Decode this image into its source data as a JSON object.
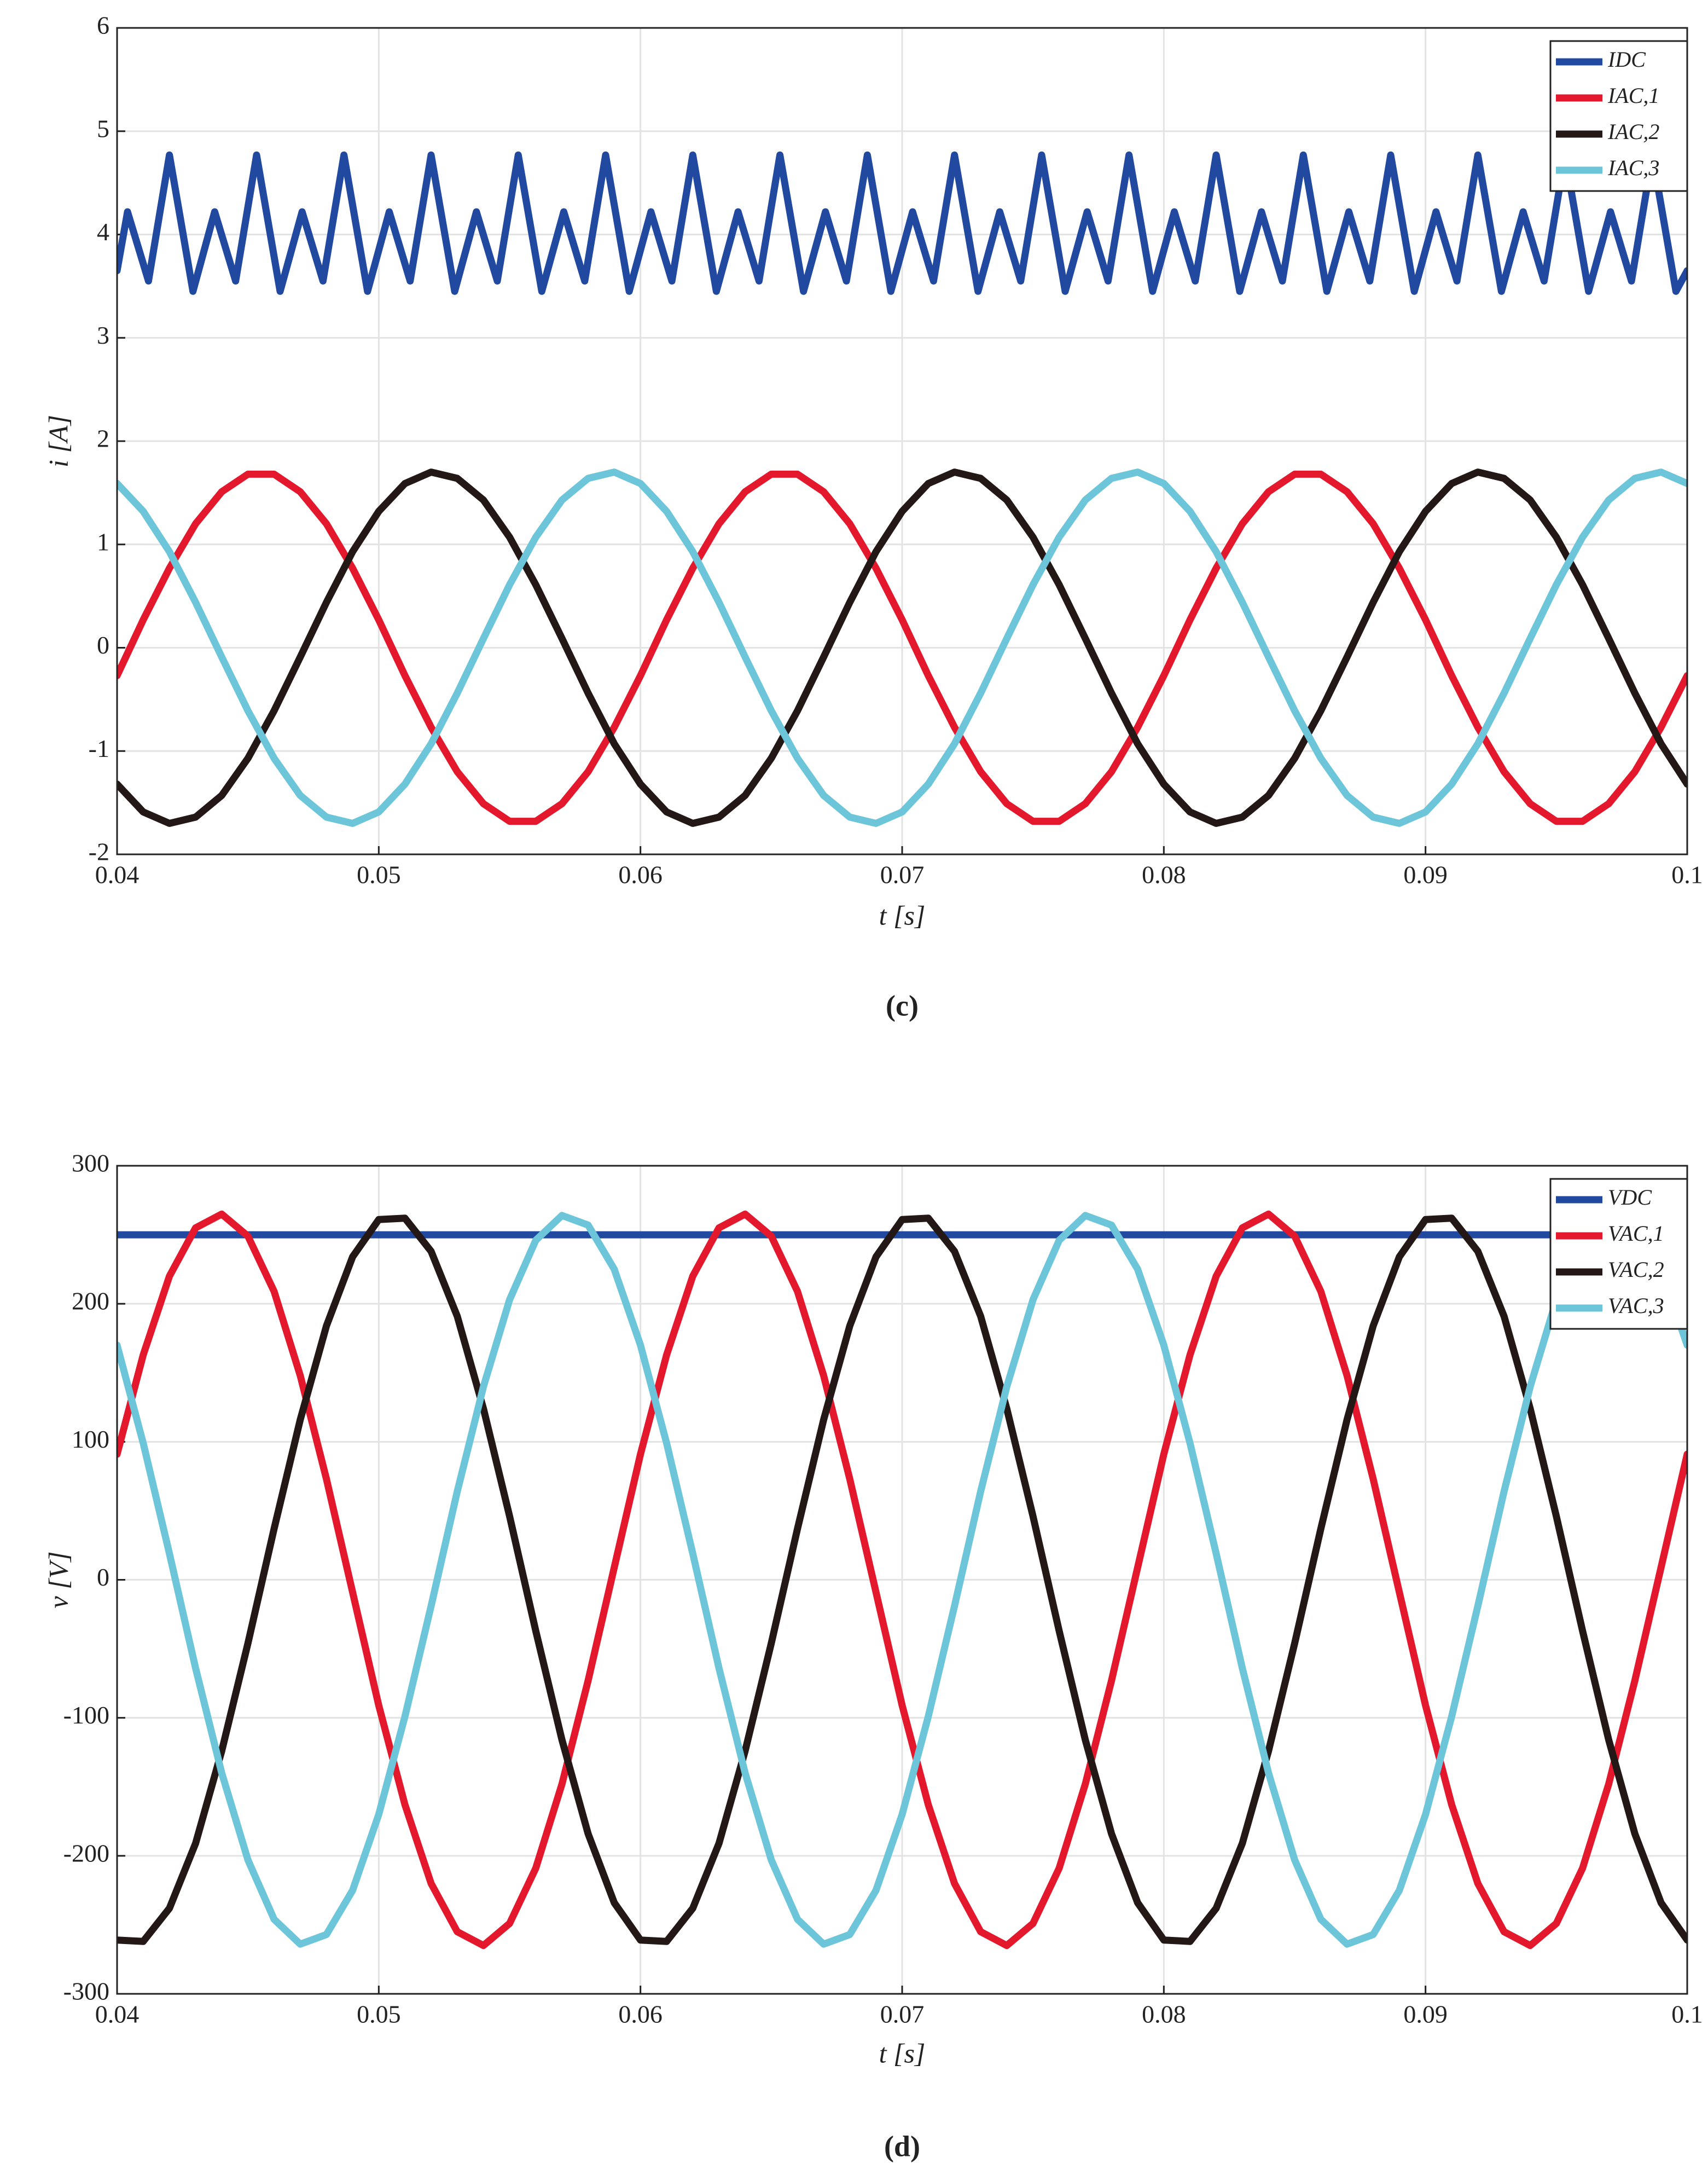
{
  "chart_data": [
    {
      "type": "line",
      "caption": "(c)",
      "x_label": "t  [s]",
      "y_label": "i  [A]",
      "xlim": [
        0.04,
        0.1
      ],
      "ylim": [
        -2,
        6
      ],
      "xticks": [
        0.04,
        0.05,
        0.06,
        0.07,
        0.08,
        0.09,
        0.1
      ],
      "yticks": [
        -2,
        -1,
        0,
        1,
        2,
        3,
        4,
        5,
        6
      ],
      "grid": true,
      "legend": "upper right",
      "x": [
        0.04,
        0.041,
        0.042,
        0.043,
        0.044,
        0.045,
        0.046,
        0.047,
        0.048,
        0.049,
        0.05,
        0.051,
        0.052,
        0.053,
        0.054,
        0.055,
        0.056,
        0.057,
        0.058,
        0.059,
        0.06,
        0.061,
        0.062,
        0.063,
        0.064,
        0.065,
        0.066,
        0.067,
        0.068,
        0.069,
        0.07,
        0.071,
        0.072,
        0.073,
        0.074,
        0.075,
        0.076,
        0.077,
        0.078,
        0.079,
        0.08,
        0.081,
        0.082,
        0.083,
        0.084,
        0.085,
        0.086,
        0.087,
        0.088,
        0.089,
        0.09,
        0.091,
        0.092,
        0.093,
        0.094,
        0.095,
        0.096,
        0.097,
        0.098,
        0.099,
        0.1
      ],
      "series": [
        {
          "name": "IDC",
          "color": "#2149a0",
          "x": [
            0.04,
            0.0404,
            0.0412,
            0.042,
            0.0429,
            0.04373,
            0.04453,
            0.04533,
            0.04623,
            0.04707,
            0.04787,
            0.04867,
            0.04957,
            0.0504,
            0.0512,
            0.052,
            0.0529,
            0.05373,
            0.05453,
            0.05533,
            0.05623,
            0.05707,
            0.05787,
            0.05867,
            0.05957,
            0.0604,
            0.0612,
            0.062,
            0.0629,
            0.06373,
            0.06453,
            0.06533,
            0.06623,
            0.06707,
            0.06787,
            0.06867,
            0.06957,
            0.0704,
            0.0712,
            0.072,
            0.0729,
            0.07373,
            0.07453,
            0.07533,
            0.07623,
            0.07707,
            0.07787,
            0.07867,
            0.07957,
            0.0804,
            0.0812,
            0.082,
            0.0829,
            0.08373,
            0.08453,
            0.08533,
            0.08623,
            0.08707,
            0.08787,
            0.08867,
            0.08957,
            0.0904,
            0.0912,
            0.092,
            0.0929,
            0.09373,
            0.09453,
            0.09533,
            0.09623,
            0.09707,
            0.09787,
            0.09867,
            0.09957,
            0.1
          ],
          "values": [
            3.65,
            4.22,
            3.55,
            4.77,
            3.45,
            4.22,
            3.55,
            4.77,
            3.45,
            4.22,
            3.55,
            4.77,
            3.45,
            4.22,
            3.55,
            4.77,
            3.45,
            4.22,
            3.55,
            4.77,
            3.45,
            4.22,
            3.55,
            4.77,
            3.45,
            4.22,
            3.55,
            4.77,
            3.45,
            4.22,
            3.55,
            4.77,
            3.45,
            4.22,
            3.55,
            4.77,
            3.45,
            4.22,
            3.55,
            4.77,
            3.45,
            4.22,
            3.55,
            4.77,
            3.45,
            4.22,
            3.55,
            4.77,
            3.45,
            4.22,
            3.55,
            4.77,
            3.45,
            4.22,
            3.55,
            4.77,
            3.45,
            4.22,
            3.55,
            4.77,
            3.45,
            4.22,
            3.55,
            4.77,
            3.45,
            4.22,
            3.55,
            4.77,
            3.45,
            4.22,
            3.55,
            4.77,
            3.45,
            3.65
          ]
        },
        {
          "name": "IAC,1",
          "color": "#e3182c",
          "values": [
            -0.27,
            0.27,
            0.77,
            1.2,
            1.51,
            1.68,
            1.68,
            1.51,
            1.2,
            0.77,
            0.27,
            -0.27,
            -0.77,
            -1.2,
            -1.51,
            -1.68,
            -1.68,
            -1.51,
            -1.2,
            -0.77,
            -0.27,
            0.27,
            0.77,
            1.2,
            1.51,
            1.68,
            1.68,
            1.51,
            1.2,
            0.77,
            0.27,
            -0.27,
            -0.77,
            -1.2,
            -1.51,
            -1.68,
            -1.68,
            -1.51,
            -1.2,
            -0.77,
            -0.27,
            0.27,
            0.77,
            1.2,
            1.51,
            1.68,
            1.68,
            1.51,
            1.2,
            0.77,
            0.27,
            -0.27,
            -0.77,
            -1.2,
            -1.51,
            -1.68,
            -1.68,
            -1.51,
            -1.2,
            -0.77,
            -0.27
          ]
        },
        {
          "name": "IAC,2",
          "color": "#231815",
          "values": [
            -1.32,
            -1.59,
            -1.7,
            -1.64,
            -1.43,
            -1.07,
            -0.61,
            -0.09,
            0.44,
            0.93,
            1.32,
            1.59,
            1.7,
            1.64,
            1.43,
            1.07,
            0.61,
            0.09,
            -0.44,
            -0.93,
            -1.32,
            -1.59,
            -1.7,
            -1.64,
            -1.43,
            -1.07,
            -0.61,
            -0.09,
            0.44,
            0.93,
            1.32,
            1.59,
            1.7,
            1.64,
            1.43,
            1.07,
            0.61,
            0.09,
            -0.44,
            -0.93,
            -1.32,
            -1.59,
            -1.7,
            -1.64,
            -1.43,
            -1.07,
            -0.61,
            -0.09,
            0.44,
            0.93,
            1.32,
            1.59,
            1.7,
            1.64,
            1.43,
            1.07,
            0.61,
            0.09,
            -0.44,
            -0.93,
            -1.32
          ]
        },
        {
          "name": "IAC,3",
          "color": "#6cc5d9",
          "values": [
            1.59,
            1.32,
            0.93,
            0.44,
            -0.09,
            -0.61,
            -1.07,
            -1.43,
            -1.64,
            -1.7,
            -1.59,
            -1.32,
            -0.93,
            -0.44,
            0.09,
            0.61,
            1.07,
            1.43,
            1.64,
            1.7,
            1.59,
            1.32,
            0.93,
            0.44,
            -0.09,
            -0.61,
            -1.07,
            -1.43,
            -1.64,
            -1.7,
            -1.59,
            -1.32,
            -0.93,
            -0.44,
            0.09,
            0.61,
            1.07,
            1.43,
            1.64,
            1.7,
            1.59,
            1.32,
            0.93,
            0.44,
            -0.09,
            -0.61,
            -1.07,
            -1.43,
            -1.64,
            -1.7,
            -1.59,
            -1.32,
            -0.93,
            -0.44,
            0.09,
            0.61,
            1.07,
            1.43,
            1.64,
            1.7,
            1.59
          ]
        }
      ]
    },
    {
      "type": "line",
      "caption": "(d)",
      "x_label": "t  [s]",
      "y_label": "v  [V]",
      "xlim": [
        0.04,
        0.1
      ],
      "ylim": [
        -300,
        300
      ],
      "xticks": [
        0.04,
        0.05,
        0.06,
        0.07,
        0.08,
        0.09,
        0.1
      ],
      "yticks": [
        -300,
        -200,
        -100,
        0,
        100,
        200,
        300
      ],
      "grid": true,
      "legend": "upper right",
      "x": [
        0.04,
        0.041,
        0.042,
        0.043,
        0.044,
        0.045,
        0.046,
        0.047,
        0.048,
        0.049,
        0.05,
        0.051,
        0.052,
        0.053,
        0.054,
        0.055,
        0.056,
        0.057,
        0.058,
        0.059,
        0.06,
        0.061,
        0.062,
        0.063,
        0.064,
        0.065,
        0.066,
        0.067,
        0.068,
        0.069,
        0.07,
        0.071,
        0.072,
        0.073,
        0.074,
        0.075,
        0.076,
        0.077,
        0.078,
        0.079,
        0.08,
        0.081,
        0.082,
        0.083,
        0.084,
        0.085,
        0.086,
        0.087,
        0.088,
        0.089,
        0.09,
        0.091,
        0.092,
        0.093,
        0.094,
        0.095,
        0.096,
        0.097,
        0.098,
        0.099,
        0.1
      ],
      "series": [
        {
          "name": "VDC",
          "color": "#2149a0",
          "x": [
            0.04,
            0.1
          ],
          "values": [
            250,
            250
          ]
        },
        {
          "name": "VAC,1",
          "color": "#e3182c",
          "values": [
            91,
            163,
            220,
            255,
            265,
            249,
            209,
            148,
            73,
            -9,
            -91,
            -163,
            -220,
            -255,
            -265,
            -249,
            -209,
            -148,
            -73,
            9,
            91,
            163,
            220,
            255,
            265,
            249,
            209,
            148,
            73,
            -9,
            -91,
            -163,
            -220,
            -255,
            -265,
            -249,
            -209,
            -148,
            -73,
            9,
            91,
            163,
            220,
            255,
            265,
            249,
            209,
            148,
            73,
            -9,
            -91,
            -163,
            -220,
            -255,
            -265,
            -249,
            -209,
            -148,
            -73,
            9,
            91
          ]
        },
        {
          "name": "VAC,2",
          "color": "#231815",
          "values": [
            -261,
            -262,
            -238,
            -191,
            -124,
            -46,
            37,
            116,
            184,
            234,
            261,
            262,
            238,
            191,
            124,
            46,
            -37,
            -116,
            -184,
            -234,
            -261,
            -262,
            -238,
            -191,
            -124,
            -46,
            37,
            116,
            184,
            234,
            261,
            262,
            238,
            191,
            124,
            46,
            -37,
            -116,
            -184,
            -234,
            -261,
            -262,
            -238,
            -191,
            -124,
            -46,
            37,
            116,
            184,
            234,
            261,
            262,
            238,
            191,
            124,
            46,
            -37,
            -116,
            -184,
            -234,
            -261
          ]
        },
        {
          "name": "VAC,3",
          "color": "#6cc5d9",
          "values": [
            170,
            99,
            19,
            -64,
            -140,
            -203,
            -246,
            -264,
            -257,
            -225,
            -170,
            -99,
            -19,
            64,
            140,
            203,
            246,
            264,
            257,
            225,
            170,
            99,
            19,
            -64,
            -140,
            -203,
            -246,
            -264,
            -257,
            -225,
            -170,
            -99,
            -19,
            64,
            140,
            203,
            246,
            264,
            257,
            225,
            170,
            99,
            19,
            -64,
            -140,
            -203,
            -246,
            -264,
            -257,
            -225,
            -170,
            -99,
            -19,
            64,
            140,
            203,
            246,
            264,
            257,
            225,
            170
          ]
        }
      ]
    }
  ]
}
